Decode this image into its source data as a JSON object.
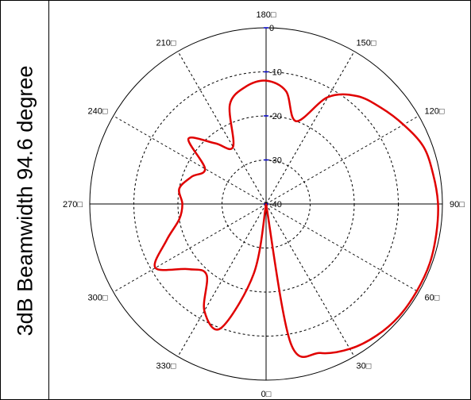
{
  "chart_data": {
    "type": "polar",
    "title": "3dB Beamwidth 94.6 degree",
    "angle_unit": "degree",
    "angle_zero": "bottom",
    "angle_direction": "counterclockwise",
    "angular_ticks": [
      {
        "angle": 0,
        "label": "0□"
      },
      {
        "angle": 30,
        "label": "30□"
      },
      {
        "angle": 60,
        "label": "60□"
      },
      {
        "angle": 90,
        "label": "90□"
      },
      {
        "angle": 120,
        "label": "120□"
      },
      {
        "angle": 150,
        "label": "150□"
      },
      {
        "angle": 180,
        "label": "180□"
      },
      {
        "angle": 210,
        "label": "210□"
      },
      {
        "angle": 240,
        "label": "240□"
      },
      {
        "angle": 270,
        "label": "270□"
      },
      {
        "angle": 300,
        "label": "300□"
      },
      {
        "angle": 330,
        "label": "330□"
      }
    ],
    "radial_ticks": [
      {
        "value": 0,
        "label": "0"
      },
      {
        "value": -10,
        "label": "-10"
      },
      {
        "value": -20,
        "label": "-20"
      },
      {
        "value": -30,
        "label": "-30"
      },
      {
        "value": -40,
        "label": "-40"
      }
    ],
    "rlim": [
      -40,
      0
    ],
    "grid": true,
    "series_color": "#e00000",
    "series": [
      {
        "angles": [
          0,
          10,
          20,
          30,
          40,
          50,
          60,
          70,
          80,
          90,
          100,
          110,
          120,
          130,
          140,
          150,
          160,
          170,
          180,
          190,
          200,
          210,
          220,
          230,
          240,
          250,
          260,
          270,
          280,
          290,
          300,
          310,
          320,
          330,
          340,
          350,
          360
        ],
        "values": [
          -40,
          -8,
          -4,
          -2,
          -1,
          -0.5,
          -0.5,
          -0.5,
          -0.8,
          -1,
          -1.5,
          -2,
          -4,
          -6,
          -8,
          -12,
          -20,
          -14,
          -12,
          -13,
          -16,
          -25,
          -22,
          -17,
          -24,
          -22,
          -20,
          -21,
          -20,
          -16,
          -11,
          -17,
          -19,
          -12,
          -10,
          -24,
          -40
        ]
      }
    ]
  }
}
